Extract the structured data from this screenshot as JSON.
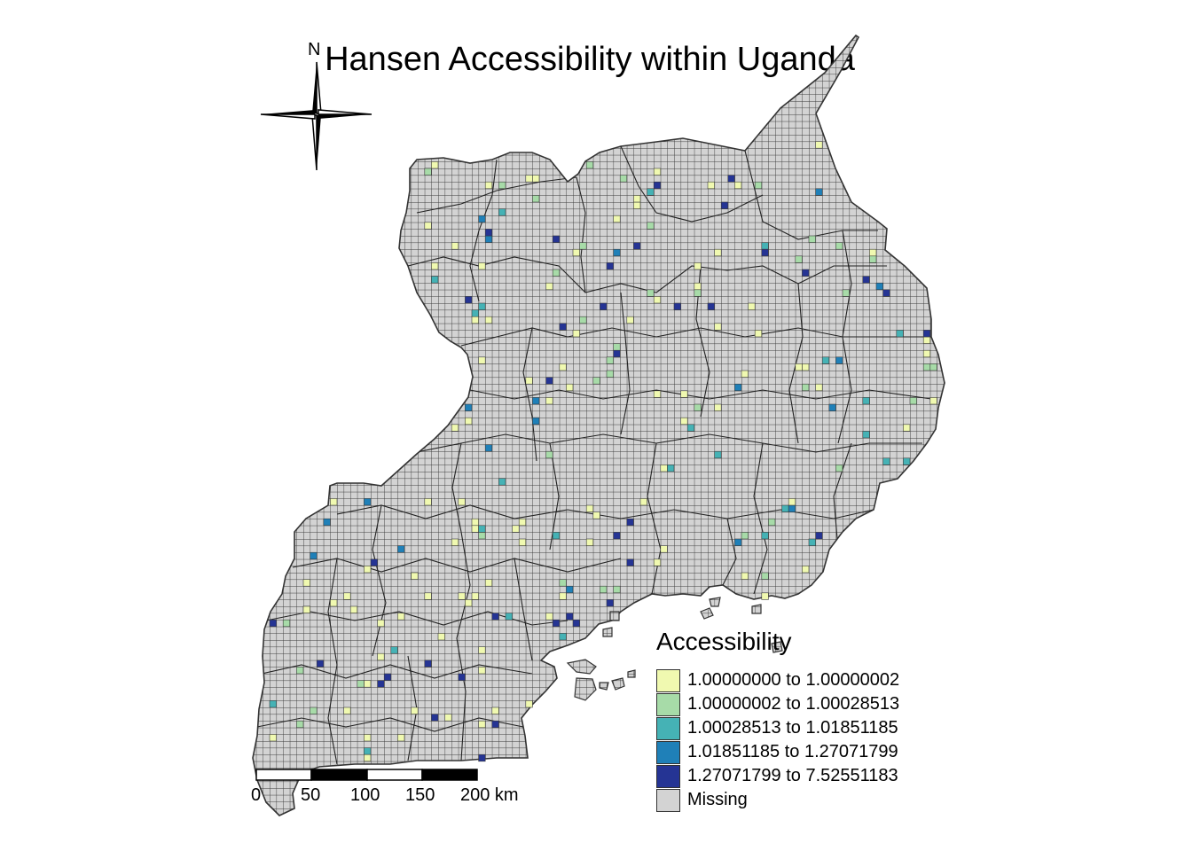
{
  "title": "Hansen Accessibility within Uganda",
  "legend": {
    "title": "Accessibility",
    "items": [
      {
        "label": "1.00000000 to 1.00000002",
        "color": "#f0f9b0"
      },
      {
        "label": "1.00000002 to 1.00028513",
        "color": "#a7dba8"
      },
      {
        "label": "1.00028513 to 1.01851185",
        "color": "#45b2b5"
      },
      {
        "label": "1.01851185 to 1.27071799",
        "color": "#1f80b8"
      },
      {
        "label": "1.27071799 to 7.52551183",
        "color": "#253494"
      },
      {
        "label": "Missing",
        "color": "#d3d3d3"
      }
    ]
  },
  "scale_bar": {
    "ticks": [
      "0",
      "50",
      "100",
      "150",
      "200 km"
    ]
  },
  "north_arrow": {
    "label": "N"
  },
  "colors": {
    "grid_fill": "#d3d3d3",
    "grid_line": "#3a3a3a",
    "border": "#333333"
  },
  "icons": [
    "north-arrow-icon",
    "scale-bar-icon"
  ]
}
